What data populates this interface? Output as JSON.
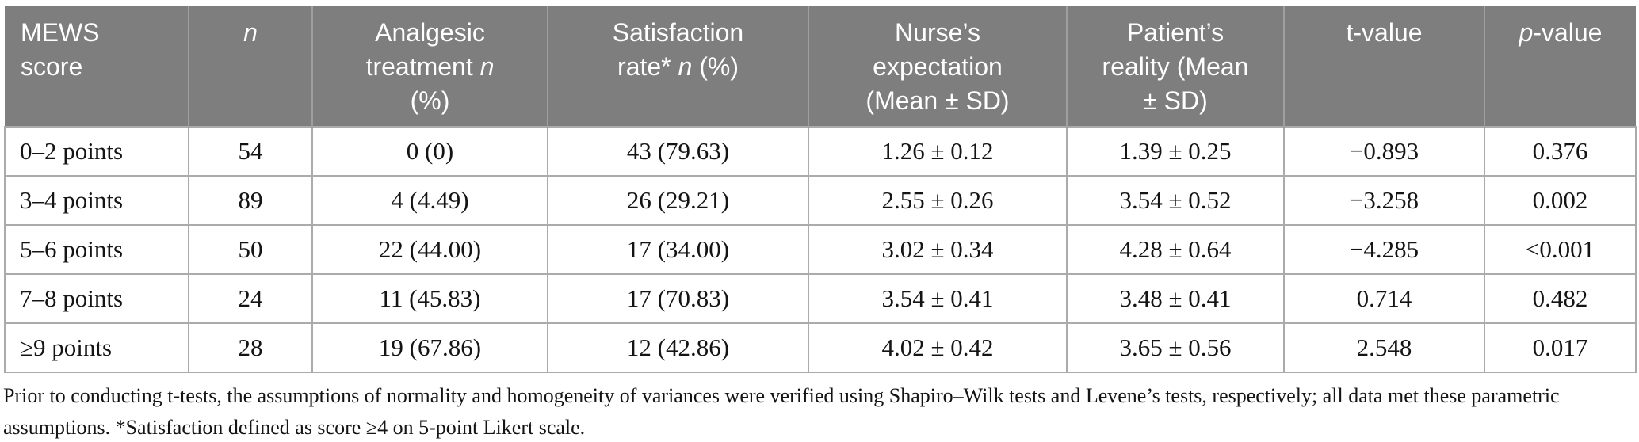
{
  "table": {
    "columns": [
      {
        "label": "MEWS\nscore"
      },
      {
        "label": "_n_"
      },
      {
        "label": "Analgesic\ntreatment _n_\n(%)"
      },
      {
        "label": "Satisfaction\nrate* _n_ (%)"
      },
      {
        "label": "Nurse’s\nexpectation\n(Mean ± SD)"
      },
      {
        "label": "Patient’s\nreality (Mean\n± SD)"
      },
      {
        "label": "t-value"
      },
      {
        "label": "_p_-value"
      }
    ],
    "rows": [
      [
        "0–2 points",
        "54",
        "0 (0)",
        "43 (79.63)",
        "1.26 ± 0.12",
        "1.39 ± 0.25",
        "−0.893",
        "0.376"
      ],
      [
        "3–4 points",
        "89",
        "4 (4.49)",
        "26 (29.21)",
        "2.55 ± 0.26",
        "3.54 ± 0.52",
        "−3.258",
        "0.002"
      ],
      [
        "5–6 points",
        "50",
        "22 (44.00)",
        "17 (34.00)",
        "3.02 ± 0.34",
        "4.28 ± 0.64",
        "−4.285",
        "<0.001"
      ],
      [
        "7–8 points",
        "24",
        "11 (45.83)",
        "17 (70.83)",
        "3.54 ± 0.41",
        "3.48 ± 0.41",
        "0.714",
        "0.482"
      ],
      [
        "≥9 points",
        "28",
        "19 (67.86)",
        "12 (42.86)",
        "4.02 ± 0.42",
        "3.65 ± 0.56",
        "2.548",
        "0.017"
      ]
    ]
  },
  "footnote": {
    "line1": "Prior to conducting t-tests, the assumptions of normality and homogeneity of variances were verified using Shapiro–Wilk tests and Levene’s tests, respectively; all data met these parametric",
    "line2": "assumptions. *Satisfaction defined as score ≥4 on 5-point Likert scale."
  },
  "colors": {
    "header_bg": "#7e7e7e",
    "header_text": "#ffffff",
    "header_divider": "#9f9f9f",
    "body_border": "#ababab",
    "body_text": "#141414"
  }
}
